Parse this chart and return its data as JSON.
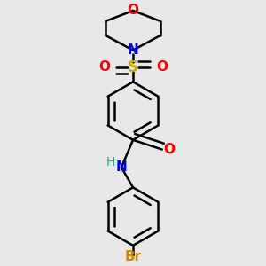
{
  "bg_color": "#e8e8e8",
  "atom_colors": {
    "C": "#000000",
    "N": "#0000ff",
    "O": "#ff0000",
    "S": "#ccaa00",
    "Br": "#cc8800",
    "H": "#2aaa8a"
  },
  "bond_color": "#000000",
  "bond_width": 1.8,
  "figsize": [
    3.0,
    3.0
  ],
  "dpi": 100
}
